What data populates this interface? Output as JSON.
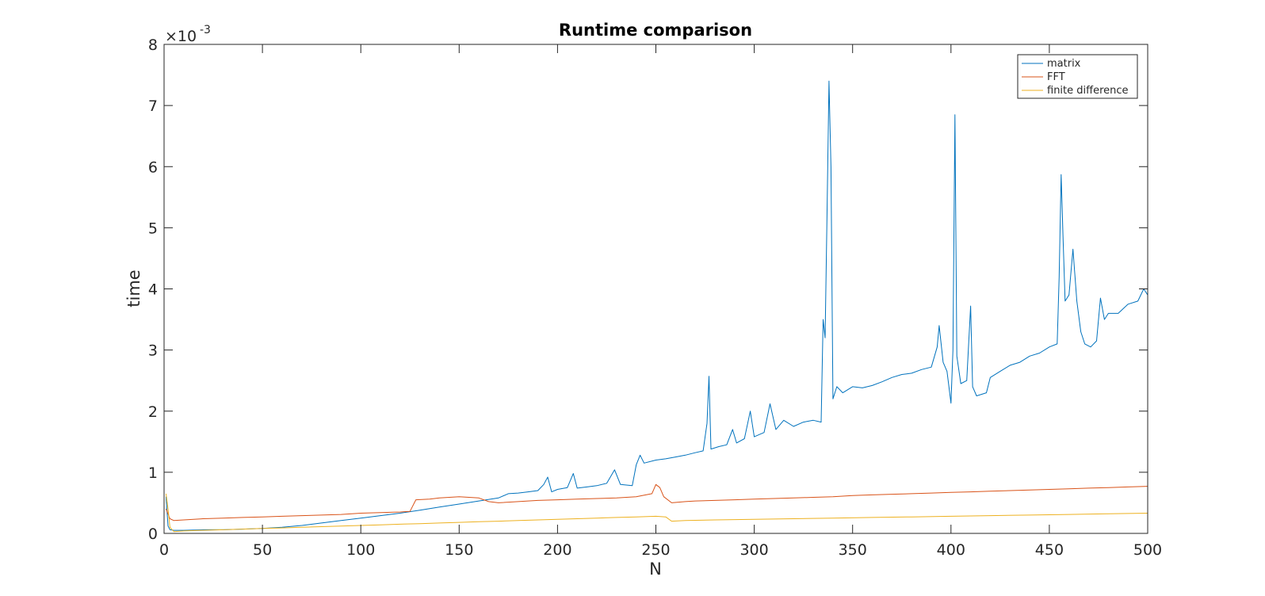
{
  "chart_data": {
    "type": "line",
    "title": "Runtime comparison",
    "xlabel": "N",
    "ylabel": "time",
    "y_exponent_label": "×10",
    "y_exponent_power": "-3",
    "xlim": [
      0,
      500
    ],
    "ylim": [
      0,
      0.008
    ],
    "x_ticks": [
      0,
      50,
      100,
      150,
      200,
      250,
      300,
      350,
      400,
      450,
      500
    ],
    "x_tick_labels": [
      "0",
      "50",
      "100",
      "150",
      "200",
      "250",
      "300",
      "350",
      "400",
      "450",
      "500"
    ],
    "y_ticks": [
      0,
      0.001,
      0.002,
      0.003,
      0.004,
      0.005,
      0.006,
      0.007,
      0.008
    ],
    "y_tick_labels": [
      "0",
      "1",
      "2",
      "3",
      "4",
      "5",
      "6",
      "7",
      "8"
    ],
    "grid": false,
    "legend_position": "top-right",
    "series": [
      {
        "name": "matrix",
        "color": "#0072BD",
        "points": [
          [
            1,
            0.0006
          ],
          [
            2,
            0.00012
          ],
          [
            3,
            6e-05
          ],
          [
            5,
            5e-05
          ],
          [
            10,
            5e-05
          ],
          [
            20,
            6e-05
          ],
          [
            30,
            6e-05
          ],
          [
            40,
            7e-05
          ],
          [
            50,
            8e-05
          ],
          [
            60,
            0.0001
          ],
          [
            70,
            0.00013
          ],
          [
            80,
            0.00017
          ],
          [
            90,
            0.00021
          ],
          [
            100,
            0.00025
          ],
          [
            110,
            0.00029
          ],
          [
            120,
            0.00033
          ],
          [
            130,
            0.00038
          ],
          [
            140,
            0.00043
          ],
          [
            150,
            0.00048
          ],
          [
            160,
            0.00053
          ],
          [
            170,
            0.00058
          ],
          [
            175,
            0.00065
          ],
          [
            180,
            0.00066
          ],
          [
            185,
            0.00068
          ],
          [
            190,
            0.0007
          ],
          [
            193,
            0.0008
          ],
          [
            195,
            0.00092
          ],
          [
            197,
            0.00068
          ],
          [
            200,
            0.00072
          ],
          [
            205,
            0.00075
          ],
          [
            208,
            0.00098
          ],
          [
            210,
            0.00074
          ],
          [
            215,
            0.00076
          ],
          [
            220,
            0.00078
          ],
          [
            225,
            0.00082
          ],
          [
            229,
            0.00104
          ],
          [
            232,
            0.0008
          ],
          [
            238,
            0.00078
          ],
          [
            240,
            0.00112
          ],
          [
            242,
            0.00128
          ],
          [
            244,
            0.00115
          ],
          [
            250,
            0.0012
          ],
          [
            255,
            0.00122
          ],
          [
            260,
            0.00125
          ],
          [
            265,
            0.00128
          ],
          [
            270,
            0.00132
          ],
          [
            274,
            0.00135
          ],
          [
            276,
            0.0018
          ],
          [
            277,
            0.00257
          ],
          [
            278,
            0.00138
          ],
          [
            282,
            0.00142
          ],
          [
            286,
            0.00145
          ],
          [
            289,
            0.0017
          ],
          [
            291,
            0.00148
          ],
          [
            295,
            0.00155
          ],
          [
            298,
            0.002
          ],
          [
            300,
            0.00158
          ],
          [
            305,
            0.00165
          ],
          [
            308,
            0.00212
          ],
          [
            311,
            0.0017
          ],
          [
            315,
            0.00185
          ],
          [
            320,
            0.00175
          ],
          [
            325,
            0.00182
          ],
          [
            330,
            0.00185
          ],
          [
            334,
            0.00182
          ],
          [
            335,
            0.0035
          ],
          [
            336,
            0.0032
          ],
          [
            337,
            0.0052
          ],
          [
            338,
            0.0074
          ],
          [
            339,
            0.006
          ],
          [
            340,
            0.0022
          ],
          [
            342,
            0.0024
          ],
          [
            345,
            0.0023
          ],
          [
            350,
            0.0024
          ],
          [
            355,
            0.00238
          ],
          [
            360,
            0.00242
          ],
          [
            365,
            0.00248
          ],
          [
            370,
            0.00255
          ],
          [
            375,
            0.0026
          ],
          [
            380,
            0.00262
          ],
          [
            385,
            0.00268
          ],
          [
            390,
            0.00272
          ],
          [
            393,
            0.00305
          ],
          [
            394,
            0.0034
          ],
          [
            396,
            0.0028
          ],
          [
            398,
            0.00265
          ],
          [
            400,
            0.00213
          ],
          [
            401,
            0.003
          ],
          [
            402,
            0.00685
          ],
          [
            403,
            0.0029
          ],
          [
            405,
            0.00245
          ],
          [
            408,
            0.0025
          ],
          [
            410,
            0.00372
          ],
          [
            411,
            0.0024
          ],
          [
            413,
            0.00225
          ],
          [
            418,
            0.0023
          ],
          [
            420,
            0.00255
          ],
          [
            425,
            0.00265
          ],
          [
            430,
            0.00275
          ],
          [
            435,
            0.0028
          ],
          [
            440,
            0.0029
          ],
          [
            445,
            0.00295
          ],
          [
            450,
            0.00305
          ],
          [
            454,
            0.0031
          ],
          [
            455,
            0.0042
          ],
          [
            456,
            0.00587
          ],
          [
            457,
            0.0048
          ],
          [
            458,
            0.0038
          ],
          [
            460,
            0.0039
          ],
          [
            462,
            0.00465
          ],
          [
            464,
            0.0038
          ],
          [
            466,
            0.0033
          ],
          [
            468,
            0.0031
          ],
          [
            471,
            0.00305
          ],
          [
            474,
            0.00315
          ],
          [
            476,
            0.00385
          ],
          [
            478,
            0.0035
          ],
          [
            480,
            0.0036
          ],
          [
            485,
            0.0036
          ],
          [
            490,
            0.00375
          ],
          [
            495,
            0.0038
          ],
          [
            498,
            0.004
          ],
          [
            500,
            0.0039
          ]
        ]
      },
      {
        "name": "FFT",
        "color": "#D95319",
        "points": [
          [
            1,
            0.0004
          ],
          [
            3,
            0.00024
          ],
          [
            5,
            0.00021
          ],
          [
            10,
            0.00022
          ],
          [
            20,
            0.00024
          ],
          [
            30,
            0.00025
          ],
          [
            40,
            0.00026
          ],
          [
            50,
            0.00027
          ],
          [
            60,
            0.00028
          ],
          [
            70,
            0.00029
          ],
          [
            80,
            0.0003
          ],
          [
            90,
            0.00031
          ],
          [
            100,
            0.00033
          ],
          [
            110,
            0.00034
          ],
          [
            120,
            0.00035
          ],
          [
            125,
            0.00036
          ],
          [
            128,
            0.00055
          ],
          [
            135,
            0.00056
          ],
          [
            140,
            0.00058
          ],
          [
            150,
            0.0006
          ],
          [
            160,
            0.00058
          ],
          [
            165,
            0.00052
          ],
          [
            170,
            0.0005
          ],
          [
            180,
            0.00052
          ],
          [
            190,
            0.00054
          ],
          [
            200,
            0.00055
          ],
          [
            210,
            0.00056
          ],
          [
            220,
            0.00057
          ],
          [
            230,
            0.00058
          ],
          [
            240,
            0.0006
          ],
          [
            248,
            0.00065
          ],
          [
            250,
            0.0008
          ],
          [
            252,
            0.00075
          ],
          [
            254,
            0.0006
          ],
          [
            258,
            0.0005
          ],
          [
            265,
            0.00052
          ],
          [
            270,
            0.00053
          ],
          [
            280,
            0.00054
          ],
          [
            290,
            0.00055
          ],
          [
            300,
            0.00056
          ],
          [
            310,
            0.00057
          ],
          [
            320,
            0.00058
          ],
          [
            330,
            0.00059
          ],
          [
            340,
            0.0006
          ],
          [
            350,
            0.00062
          ],
          [
            360,
            0.00063
          ],
          [
            370,
            0.00064
          ],
          [
            380,
            0.00065
          ],
          [
            390,
            0.00066
          ],
          [
            400,
            0.00067
          ],
          [
            410,
            0.00068
          ],
          [
            420,
            0.00069
          ],
          [
            430,
            0.0007
          ],
          [
            440,
            0.00071
          ],
          [
            450,
            0.00072
          ],
          [
            460,
            0.00073
          ],
          [
            470,
            0.00074
          ],
          [
            480,
            0.00075
          ],
          [
            490,
            0.00076
          ],
          [
            500,
            0.00077
          ]
        ]
      },
      {
        "name": "finite difference",
        "color": "#EDB120",
        "points": [
          [
            1,
            0.00065
          ],
          [
            2,
            0.0004
          ],
          [
            3,
            0.0001
          ],
          [
            5,
            3e-05
          ],
          [
            10,
            4e-05
          ],
          [
            20,
            5e-05
          ],
          [
            30,
            6e-05
          ],
          [
            40,
            7e-05
          ],
          [
            50,
            8e-05
          ],
          [
            60,
            9e-05
          ],
          [
            70,
            0.0001
          ],
          [
            80,
            0.00011
          ],
          [
            90,
            0.00012
          ],
          [
            100,
            0.00013
          ],
          [
            110,
            0.00014
          ],
          [
            120,
            0.00015
          ],
          [
            130,
            0.00016
          ],
          [
            140,
            0.00017
          ],
          [
            150,
            0.00018
          ],
          [
            160,
            0.00019
          ],
          [
            170,
            0.0002
          ],
          [
            180,
            0.00021
          ],
          [
            190,
            0.00022
          ],
          [
            200,
            0.00023
          ],
          [
            210,
            0.00024
          ],
          [
            220,
            0.00025
          ],
          [
            230,
            0.00026
          ],
          [
            240,
            0.00027
          ],
          [
            250,
            0.00028
          ],
          [
            255,
            0.00027
          ],
          [
            258,
            0.0002
          ],
          [
            265,
            0.00021
          ],
          [
            280,
            0.00022
          ],
          [
            300,
            0.00023
          ],
          [
            320,
            0.00024
          ],
          [
            340,
            0.00025
          ],
          [
            360,
            0.00026
          ],
          [
            380,
            0.00027
          ],
          [
            400,
            0.00028
          ],
          [
            420,
            0.00029
          ],
          [
            440,
            0.0003
          ],
          [
            460,
            0.00031
          ],
          [
            480,
            0.00032
          ],
          [
            500,
            0.00033
          ]
        ]
      }
    ]
  }
}
